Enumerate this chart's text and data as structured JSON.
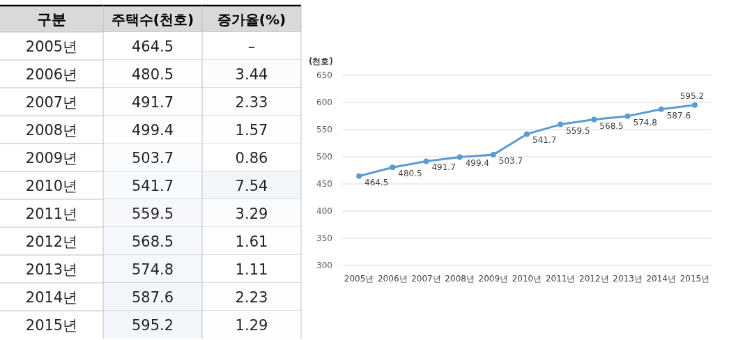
{
  "chart_data": [
    {
      "type": "heatmap",
      "annotations": [
        "구분"
      ],
      "categories": [
        "주택수(천호)",
        "증가율(%)"
      ],
      "y_categories": [
        "2005년",
        "2006년",
        "2007년",
        "2008년",
        "2009년",
        "2010년",
        "2011년",
        "2012년",
        "2013년",
        "2014년",
        "2015년"
      ],
      "cells": [
        [
          464.5,
          null
        ],
        [
          480.5,
          3.44
        ],
        [
          491.7,
          2.33
        ],
        [
          499.4,
          1.57
        ],
        [
          503.7,
          0.86
        ],
        [
          541.7,
          7.54
        ],
        [
          559.5,
          3.29
        ],
        [
          568.5,
          1.61
        ],
        [
          574.8,
          1.11
        ],
        [
          587.6,
          2.23
        ],
        [
          595.2,
          1.29
        ]
      ],
      "cell_labels": [
        [
          "464.5",
          "–"
        ],
        [
          "480.5",
          "3.44"
        ],
        [
          "491.7",
          "2.33"
        ],
        [
          "499.4",
          "1.57"
        ],
        [
          "503.7",
          "0.86"
        ],
        [
          "541.7",
          "7.54"
        ],
        [
          "559.5",
          "3.29"
        ],
        [
          "568.5",
          "1.61"
        ],
        [
          "574.8",
          "1.11"
        ],
        [
          "587.6",
          "2.23"
        ],
        [
          "595.2",
          "1.29"
        ]
      ]
    },
    {
      "type": "line",
      "ylabel": "(천호)",
      "categories": [
        "2005년",
        "2006년",
        "2007년",
        "2008년",
        "2009년",
        "2010년",
        "2011년",
        "2012년",
        "2013년",
        "2014년",
        "2015년"
      ],
      "series": [
        {
          "color": "#5b9bd5",
          "values": [
            464.5,
            480.5,
            491.7,
            499.4,
            503.7,
            541.7,
            559.5,
            568.5,
            574.8,
            587.6,
            595.2
          ]
        }
      ],
      "ylim": [
        300,
        650
      ],
      "yticks": [
        300,
        350,
        400,
        450,
        500,
        550,
        600,
        650
      ],
      "grid": "y",
      "marker": "circle",
      "data_labels": true
    }
  ]
}
